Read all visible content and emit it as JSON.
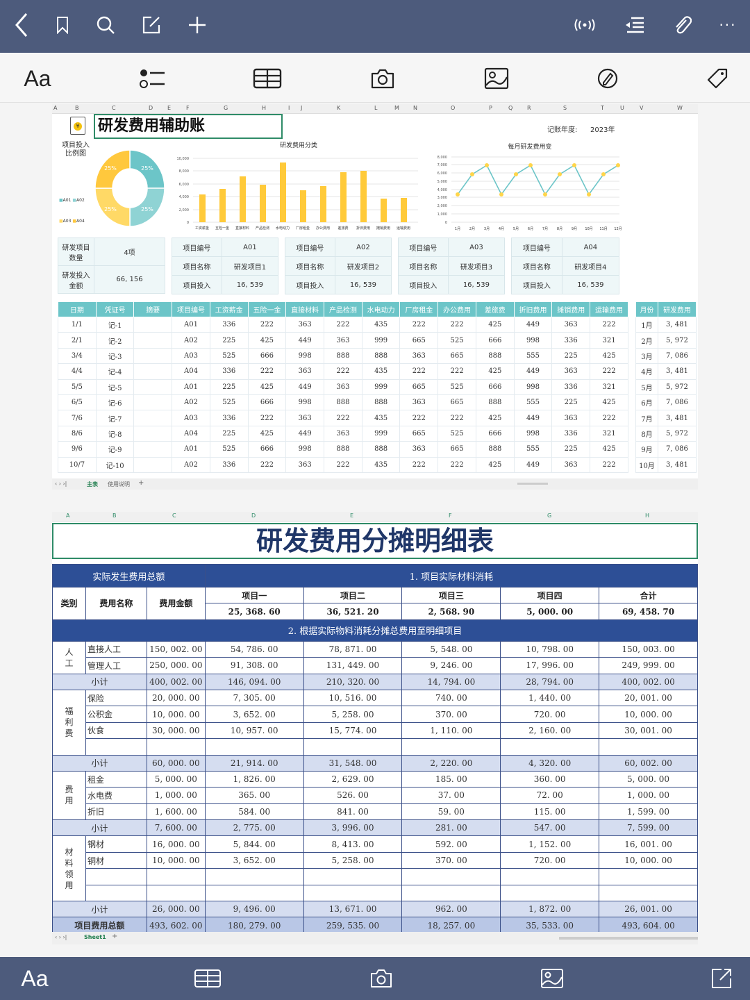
{
  "topbar": {
    "icons": [
      "back-icon",
      "bookmark-icon",
      "search-icon",
      "edit-icon",
      "add-icon",
      "broadcast-icon",
      "outline-icon",
      "attach-icon",
      "more-icon"
    ],
    "more_label": "···"
  },
  "toolbar": {
    "font_label": "Aa",
    "icons": [
      "checklist-icon",
      "table-icon",
      "camera-icon",
      "image-icon",
      "pen-icon",
      "tag-icon"
    ]
  },
  "bottombar": {
    "font_label": "Aa",
    "icons": [
      "table-icon",
      "camera-icon",
      "image-icon",
      "share-icon"
    ]
  },
  "sheet1": {
    "columns": [
      "A",
      "B",
      "C",
      "D",
      "E",
      "F",
      "G",
      "H",
      "I",
      "J",
      "K",
      "L",
      "M",
      "N",
      "O",
      "P",
      "Q",
      "R",
      "S",
      "T",
      "U",
      "V",
      "W"
    ],
    "title": "研发费用辅助账",
    "year_label": "记账年度:",
    "year_value": "2023年",
    "donut_label_line1": "项目投入",
    "donut_label_line2": "比例图",
    "donut_legend": [
      "A01",
      "A02",
      "A03",
      "A04"
    ],
    "summary": {
      "count_label": "研发项目数量",
      "count_value": "4项",
      "amount_label": "研发投入金额",
      "amount_value": "66, 156"
    },
    "projects": [
      {
        "id_label": "项目编号",
        "id": "A01",
        "name_label": "项目名称",
        "name": "研发项目1",
        "inv_label": "项目投入",
        "inv": "16, 539"
      },
      {
        "id_label": "项目编号",
        "id": "A02",
        "name_label": "项目名称",
        "name": "研发项目2",
        "inv_label": "项目投入",
        "inv": "16, 539"
      },
      {
        "id_label": "项目编号",
        "id": "A03",
        "name_label": "项目名称",
        "name": "研发项目3",
        "inv_label": "项目投入",
        "inv": "16, 539"
      },
      {
        "id_label": "项目编号",
        "id": "A04",
        "name_label": "项目名称",
        "name": "研发项目4",
        "inv_label": "项目投入",
        "inv": "16, 539"
      }
    ],
    "table_headers": [
      "日期",
      "凭证号",
      "摘要",
      "项目编号",
      "工资薪金",
      "五险一金",
      "直接材料",
      "产品检测",
      "水电动力",
      "厂房租金",
      "办公费用",
      "差旅费",
      "折旧费用",
      "摊销费用",
      "运输费用"
    ],
    "month_headers": [
      "月份",
      "研发费用"
    ],
    "rows": [
      [
        "1/1",
        "记-1",
        "",
        "A01",
        "336",
        "222",
        "363",
        "222",
        "435",
        "222",
        "222",
        "425",
        "449",
        "363",
        "222"
      ],
      [
        "2/1",
        "记-2",
        "",
        "A02",
        "225",
        "425",
        "449",
        "363",
        "999",
        "665",
        "525",
        "666",
        "998",
        "336",
        "321"
      ],
      [
        "3/4",
        "记-3",
        "",
        "A03",
        "525",
        "666",
        "998",
        "888",
        "888",
        "363",
        "665",
        "888",
        "555",
        "225",
        "425"
      ],
      [
        "4/4",
        "记-4",
        "",
        "A04",
        "336",
        "222",
        "363",
        "222",
        "435",
        "222",
        "222",
        "425",
        "449",
        "363",
        "222"
      ],
      [
        "5/5",
        "记-5",
        "",
        "A01",
        "225",
        "425",
        "449",
        "363",
        "999",
        "665",
        "525",
        "666",
        "998",
        "336",
        "321"
      ],
      [
        "6/5",
        "记-6",
        "",
        "A02",
        "525",
        "666",
        "998",
        "888",
        "888",
        "363",
        "665",
        "888",
        "555",
        "225",
        "425"
      ],
      [
        "7/6",
        "记-7",
        "",
        "A03",
        "336",
        "222",
        "363",
        "222",
        "435",
        "222",
        "222",
        "425",
        "449",
        "363",
        "222"
      ],
      [
        "8/6",
        "记-8",
        "",
        "A04",
        "225",
        "425",
        "449",
        "363",
        "999",
        "665",
        "525",
        "666",
        "998",
        "336",
        "321"
      ],
      [
        "9/6",
        "记-9",
        "",
        "A01",
        "525",
        "666",
        "998",
        "888",
        "888",
        "363",
        "665",
        "888",
        "555",
        "225",
        "425"
      ],
      [
        "10/7",
        "记-10",
        "",
        "A02",
        "336",
        "222",
        "363",
        "222",
        "435",
        "222",
        "222",
        "425",
        "449",
        "363",
        "222"
      ]
    ],
    "months": [
      [
        "1月",
        "3, 481"
      ],
      [
        "2月",
        "5, 972"
      ],
      [
        "3月",
        "7, 086"
      ],
      [
        "4月",
        "3, 481"
      ],
      [
        "5月",
        "5, 972"
      ],
      [
        "6月",
        "7, 086"
      ],
      [
        "7月",
        "3, 481"
      ],
      [
        "8月",
        "5, 972"
      ],
      [
        "9月",
        "7, 086"
      ],
      [
        "10月",
        "3, 481"
      ]
    ],
    "tabs": [
      "主表",
      "使用说明"
    ],
    "add_tab": "+"
  },
  "sheet2": {
    "columns": [
      "A",
      "B",
      "C",
      "D",
      "E",
      "F",
      "G",
      "H"
    ],
    "title": "研发费用分摊明细表",
    "hdr_left": "实际发生费用总额",
    "hdr_right": "1. 项目实际材料消耗",
    "col_cat": "类别",
    "col_name": "费用名称",
    "col_amt": "费用金额",
    "projects": [
      "项目一",
      "项目二",
      "项目三",
      "项目四",
      "合计"
    ],
    "material": [
      "25, 368. 60",
      "36, 521. 20",
      "2, 568. 90",
      "5, 000. 00",
      "69, 458. 70"
    ],
    "section2": "2. 根据实际物料消耗分摊总费用至明细项目",
    "groups": [
      {
        "cat": "人工",
        "rows": [
          [
            "直接人工",
            "150, 002. 00",
            "54, 786. 00",
            "78, 871. 00",
            "5, 548. 00",
            "10, 798. 00",
            "150, 003. 00"
          ],
          [
            "管理人工",
            "250, 000. 00",
            "91, 308. 00",
            "131, 449. 00",
            "9, 246. 00",
            "17, 996. 00",
            "249, 999. 00"
          ]
        ],
        "subtotal": [
          "小计",
          "400, 002. 00",
          "146, 094. 00",
          "210, 320. 00",
          "14, 794. 00",
          "28, 794. 00",
          "400, 002. 00"
        ]
      },
      {
        "cat": "福利费",
        "rows": [
          [
            "保险",
            "20, 000. 00",
            "7, 305. 00",
            "10, 516. 00",
            "740. 00",
            "1, 440. 00",
            "20, 001. 00"
          ],
          [
            "公积金",
            "10, 000. 00",
            "3, 652. 00",
            "5, 258. 00",
            "370. 00",
            "720. 00",
            "10, 000. 00"
          ],
          [
            "伙食",
            "30, 000. 00",
            "10, 957. 00",
            "15, 774. 00",
            "1, 110. 00",
            "2, 160. 00",
            "30, 001. 00"
          ],
          [
            "",
            "",
            "",
            "",
            "",
            "",
            ""
          ]
        ],
        "subtotal": [
          "小计",
          "60, 000. 00",
          "21, 914. 00",
          "31, 548. 00",
          "2, 220. 00",
          "4, 320. 00",
          "60, 002. 00"
        ]
      },
      {
        "cat": "费用",
        "rows": [
          [
            "租金",
            "5, 000. 00",
            "1, 826. 00",
            "2, 629. 00",
            "185. 00",
            "360. 00",
            "5, 000. 00"
          ],
          [
            "水电费",
            "1, 000. 00",
            "365. 00",
            "526. 00",
            "37. 00",
            "72. 00",
            "1, 000. 00"
          ],
          [
            "折旧",
            "1, 600. 00",
            "584. 00",
            "841. 00",
            "59. 00",
            "115. 00",
            "1, 599. 00"
          ]
        ],
        "subtotal": [
          "小计",
          "7, 600. 00",
          "2, 775. 00",
          "3, 996. 00",
          "281. 00",
          "547. 00",
          "7, 599. 00"
        ]
      },
      {
        "cat": "材料领用",
        "rows": [
          [
            "钢材",
            "16, 000. 00",
            "5, 844. 00",
            "8, 413. 00",
            "592. 00",
            "1, 152. 00",
            "16, 001. 00"
          ],
          [
            "铜材",
            "10, 000. 00",
            "3, 652. 00",
            "5, 258. 00",
            "370. 00",
            "720. 00",
            "10, 000. 00"
          ],
          [
            "",
            "",
            "",
            "",
            "",
            "",
            ""
          ],
          [
            "",
            "",
            "",
            "",
            "",
            "",
            ""
          ]
        ],
        "subtotal": [
          "小计",
          "26, 000. 00",
          "9, 496. 00",
          "13, 671. 00",
          "962. 00",
          "1, 872. 00",
          "26, 001. 00"
        ]
      }
    ],
    "total_row": [
      "项目费用总额",
      "493, 602. 00",
      "180, 279. 00",
      "259, 535. 00",
      "18, 257. 00",
      "35, 533. 00",
      "493, 604. 00"
    ],
    "tabs": [
      "Sheet1"
    ],
    "add_tab": "+"
  },
  "chart_data": [
    {
      "type": "pie",
      "title": "项目投入比例图",
      "categories": [
        "A01",
        "A02",
        "A03",
        "A04"
      ],
      "values": [
        25,
        25,
        25,
        25
      ],
      "labels": [
        "25%",
        "25%",
        "25%",
        "25%"
      ],
      "colors": [
        "#6cc5c8",
        "#8fd3d4",
        "#ffd966",
        "#ffc83d"
      ],
      "legend_position": "left"
    },
    {
      "type": "bar",
      "title": "研发费用分类",
      "categories": [
        "工资薪金",
        "五险一金",
        "直接材料",
        "产品检测",
        "水电动力",
        "厂房租金",
        "办公费用",
        "差旅费",
        "折旧费用",
        "摊销费用",
        "运输费用"
      ],
      "values": [
        4350,
        5250,
        7200,
        5900,
        9300,
        5050,
        5600,
        7850,
        8050,
        3700,
        3800
      ],
      "ylim": [
        0,
        10000
      ],
      "yticks": [
        "0",
        "2,000",
        "4,000",
        "6,000",
        "8,000",
        "10,000"
      ],
      "grid": true,
      "color": "#ffca3a"
    },
    {
      "type": "line",
      "title": "每月研发费用变",
      "categories": [
        "1月",
        "2月",
        "3月",
        "4月",
        "5月",
        "6月",
        "7月",
        "8月",
        "9月",
        "10月",
        "11月",
        "12月"
      ],
      "values": [
        3481,
        5972,
        7086,
        3481,
        5972,
        7086,
        3481,
        5972,
        7086,
        3481,
        5972,
        7086
      ],
      "ylim": [
        0,
        8000
      ],
      "yticks": [
        "0",
        "1,000",
        "2,000",
        "3,000",
        "4,000",
        "5,000",
        "6,000",
        "7,000",
        "8,000"
      ],
      "grid": true,
      "line_color": "#6cc5c8",
      "marker_color": "#ffd54a"
    }
  ]
}
